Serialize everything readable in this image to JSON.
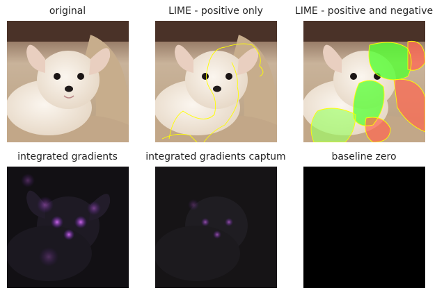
{
  "figure": {
    "panels": [
      {
        "id": "original",
        "title": "original",
        "kind": "photo"
      },
      {
        "id": "lime-pos",
        "title": "LIME - positive only",
        "kind": "lime-positive"
      },
      {
        "id": "lime-posneg",
        "title": "LIME - positive and negative",
        "kind": "lime-posneg"
      },
      {
        "id": "ig",
        "title": "integrated gradients",
        "kind": "ig"
      },
      {
        "id": "ig-captum",
        "title": "integrated gradients captum",
        "kind": "ig-captum"
      },
      {
        "id": "baseline",
        "title": "baseline zero",
        "kind": "black"
      }
    ]
  },
  "colors": {
    "title_text": "#262626",
    "lime_boundary": "#ffff00",
    "lime_positive": "#55ff33",
    "lime_negative": "#ff6650",
    "attribution_glow": "#b04cff",
    "background_dark": "#121014"
  }
}
